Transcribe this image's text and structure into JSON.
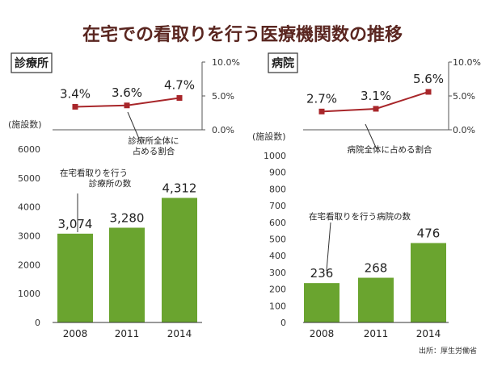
{
  "title": "在宅での看取りを行う医療機関数の推移",
  "source": "出所：厚生労働省",
  "colors": {
    "bar": "#6aa42f",
    "line": "#a8262a",
    "title": "#5a2620",
    "axis": "#333333"
  },
  "chart_data": [
    {
      "type": "bar+line",
      "panel_label": "診療所",
      "categories": [
        "2008",
        "2011",
        "2014"
      ],
      "bar": {
        "name": "在宅看取りを行う診療所の数",
        "annotation": [
          "在宅看取りを行う",
          "診療所の数"
        ],
        "values": [
          3074,
          3280,
          4312
        ],
        "value_labels": [
          "3,074",
          "3,280",
          "4,312"
        ],
        "ylabel": "(施設数)",
        "ylim": [
          0,
          6000
        ],
        "yticks": [
          "0",
          "1000",
          "2000",
          "3000",
          "4000",
          "5000",
          "6000"
        ]
      },
      "line": {
        "name": "診療所全体に占める割合",
        "annotation": [
          "診療所全体に",
          "占める割合"
        ],
        "values": [
          3.4,
          3.6,
          4.7
        ],
        "value_labels": [
          "3.4%",
          "3.6%",
          "4.7%"
        ],
        "ylim": [
          0,
          10
        ],
        "yticks": [
          "0.0%",
          "5.0%",
          "10.0%"
        ]
      }
    },
    {
      "type": "bar+line",
      "panel_label": "病院",
      "categories": [
        "2008",
        "2011",
        "2014"
      ],
      "bar": {
        "name": "在宅看取りを行う病院の数",
        "annotation": [
          "在宅看取りを行う病院の数"
        ],
        "values": [
          236,
          268,
          476
        ],
        "value_labels": [
          "236",
          "268",
          "476"
        ],
        "ylabel": "(施設数)",
        "ylim": [
          0,
          1000
        ],
        "yticks": [
          "0",
          "100",
          "200",
          "300",
          "400",
          "500",
          "600",
          "700",
          "800",
          "900",
          "1000"
        ]
      },
      "line": {
        "name": "病院全体に占める割合",
        "annotation": [
          "病院全体に占める割合"
        ],
        "values": [
          2.7,
          3.1,
          5.6
        ],
        "value_labels": [
          "2.7%",
          "3.1%",
          "5.6%"
        ],
        "ylim": [
          0,
          10
        ],
        "yticks": [
          "0.0%",
          "5.0%",
          "10.0%"
        ]
      }
    }
  ]
}
